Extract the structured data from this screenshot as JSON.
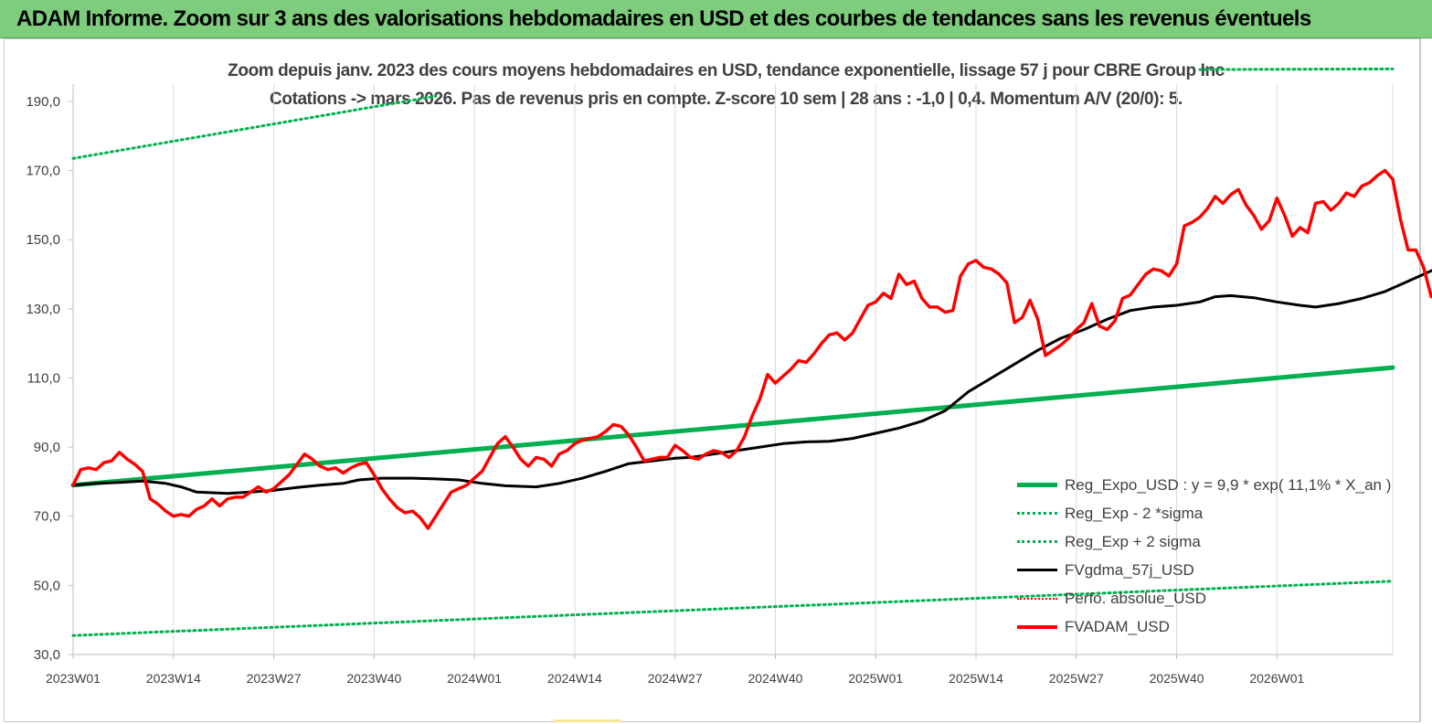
{
  "banner": {
    "title": "ADAM Informe. Zoom sur 3 ans des valorisations hebdomadaires en USD et des courbes de tendances sans les revenus éventuels"
  },
  "chart_data": {
    "type": "line",
    "title_line1": "Zoom depuis janv. 2023 des cours moyens hebdomadaires en USD, tendance exponentielle, lissage 57 j pour CBRE Group Inc",
    "title_line2": "Cotations -> mars 2026. Pas de revenus pris en compte. Z-score 10 sem | 28 ans : -1,0 | 0,4. Momentum A/V (20/0): 5.",
    "x_tick_labels": [
      "2023W01",
      "2023W14",
      "2023W27",
      "2023W40",
      "2024W01",
      "2024W14",
      "2024W27",
      "2024W40",
      "2025W01",
      "2025W14",
      "2025W27",
      "2025W40",
      "2026W01"
    ],
    "x_weeks_total": 171,
    "y_tick_labels": [
      "30,0",
      "50,0",
      "70,0",
      "90,0",
      "110,0",
      "130,0",
      "150,0",
      "170,0",
      "190,0"
    ],
    "ylim": [
      30,
      195
    ],
    "grid": "vertical",
    "legend_position": "bottom-right",
    "series": [
      {
        "name": "Reg_Expo_USD : y = 9,9 * exp( 11,1% *  X_an )",
        "color": "#00b050",
        "style": "solid-thick",
        "points": [
          [
            0,
            79
          ],
          [
            171,
            113
          ]
        ]
      },
      {
        "name": "Reg_Exp - 2 *sigma",
        "color": "#00b050",
        "style": "dotted",
        "points": [
          [
            0,
            35.5
          ],
          [
            171,
            51.2
          ]
        ]
      },
      {
        "name": "Reg_Exp + 2 sigma",
        "color": "#00b050",
        "style": "dotted",
        "points": [
          [
            0,
            173.5
          ],
          [
            47,
            191.5
          ]
        ],
        "points2": [
          [
            146,
            199.2
          ],
          [
            171,
            199.4
          ]
        ]
      },
      {
        "name": "FVgdma_57j_USD",
        "color": "#000000",
        "style": "solid",
        "points": [
          [
            0,
            79
          ],
          [
            3,
            79.5
          ],
          [
            6,
            79.8
          ],
          [
            9,
            80.2
          ],
          [
            12,
            79.5
          ],
          [
            14,
            78.5
          ],
          [
            16,
            77
          ],
          [
            18,
            76.8
          ],
          [
            20,
            76.6
          ],
          [
            23,
            77
          ],
          [
            26,
            77.5
          ],
          [
            29,
            78.3
          ],
          [
            32,
            79
          ],
          [
            35,
            79.5
          ],
          [
            37,
            80.5
          ],
          [
            40,
            81
          ],
          [
            44,
            81
          ],
          [
            47,
            80.8
          ],
          [
            50,
            80.5
          ],
          [
            53,
            79.5
          ],
          [
            56,
            78.8
          ],
          [
            60,
            78.5
          ],
          [
            63,
            79.5
          ],
          [
            66,
            81
          ],
          [
            69,
            83
          ],
          [
            72,
            85.2
          ],
          [
            75,
            86
          ],
          [
            78,
            86.8
          ],
          [
            80,
            87
          ],
          [
            83,
            88
          ],
          [
            86,
            89
          ],
          [
            89,
            90
          ],
          [
            92,
            91
          ],
          [
            95,
            91.5
          ],
          [
            98,
            91.7
          ],
          [
            101,
            92.5
          ],
          [
            104,
            94
          ],
          [
            107,
            95.5
          ],
          [
            110,
            97.5
          ],
          [
            113,
            100.5
          ],
          [
            116,
            106
          ],
          [
            119,
            110
          ],
          [
            122,
            114
          ],
          [
            125,
            118
          ],
          [
            128,
            121.5
          ],
          [
            131,
            124
          ],
          [
            134,
            127
          ],
          [
            137,
            129.5
          ],
          [
            140,
            130.5
          ],
          [
            143,
            131
          ],
          [
            146,
            132
          ],
          [
            148,
            133.5
          ],
          [
            150,
            133.8
          ],
          [
            153,
            133.2
          ],
          [
            156,
            132
          ],
          [
            159,
            131
          ],
          [
            161,
            130.5
          ],
          [
            164,
            131.5
          ],
          [
            167,
            133
          ],
          [
            170,
            135
          ],
          [
            173,
            138
          ],
          [
            176,
            141
          ],
          [
            179,
            143.5
          ],
          [
            182,
            147.5
          ],
          [
            185,
            150.5
          ],
          [
            188,
            153
          ],
          [
            191,
            154
          ],
          [
            194,
            154.5
          ],
          [
            197,
            155
          ],
          [
            200,
            155.5
          ],
          [
            203,
            155.7
          ],
          [
            206,
            155.7
          ],
          [
            209,
            155.6
          ],
          [
            212,
            155
          ],
          [
            215,
            153.5
          ],
          [
            217,
            151
          ],
          [
            219,
            148
          ],
          [
            221,
            145.5
          ],
          [
            223,
            143
          ],
          [
            225,
            142
          ]
        ]
      },
      {
        "name": "Perfo. absolue_USD",
        "color": "#ff0000",
        "style": "dotted",
        "points": []
      },
      {
        "name": "FVADAM_USD",
        "color": "#ff0000",
        "style": "solid-thick",
        "points": [
          [
            0,
            79
          ],
          [
            1,
            83.5
          ],
          [
            2,
            84
          ],
          [
            3,
            83.5
          ],
          [
            4,
            85.5
          ],
          [
            5,
            86
          ],
          [
            6,
            88.5
          ],
          [
            7,
            86.5
          ],
          [
            8,
            85
          ],
          [
            9,
            83
          ],
          [
            10,
            75
          ],
          [
            11,
            73.5
          ],
          [
            12,
            71.5
          ],
          [
            13,
            70
          ],
          [
            14,
            70.5
          ],
          [
            15,
            70
          ],
          [
            16,
            72
          ],
          [
            17,
            73
          ],
          [
            18,
            75
          ],
          [
            19,
            73
          ],
          [
            20,
            75
          ],
          [
            21,
            75.5
          ],
          [
            22,
            75.5
          ],
          [
            23,
            77
          ],
          [
            24,
            78.5
          ],
          [
            25,
            77
          ],
          [
            26,
            78
          ],
          [
            27,
            80
          ],
          [
            28,
            82
          ],
          [
            29,
            85
          ],
          [
            30,
            88
          ],
          [
            31,
            86.5
          ],
          [
            32,
            84.5
          ],
          [
            33,
            83.5
          ],
          [
            34,
            84
          ],
          [
            35,
            82.5
          ],
          [
            36,
            84
          ],
          [
            37,
            85
          ],
          [
            38,
            85.5
          ],
          [
            39,
            82
          ],
          [
            40,
            78
          ],
          [
            41,
            75
          ],
          [
            42,
            72.5
          ],
          [
            43,
            71
          ],
          [
            44,
            71.5
          ],
          [
            45,
            69.5
          ],
          [
            46,
            66.5
          ],
          [
            47,
            70
          ],
          [
            48,
            73.5
          ],
          [
            49,
            77
          ],
          [
            50,
            78
          ],
          [
            51,
            79
          ],
          [
            52,
            81
          ],
          [
            53,
            83
          ],
          [
            54,
            87
          ],
          [
            55,
            91
          ],
          [
            56,
            93
          ],
          [
            57,
            90
          ],
          [
            58,
            86.5
          ],
          [
            59,
            84.5
          ],
          [
            60,
            87
          ],
          [
            61,
            86.5
          ],
          [
            62,
            84.5
          ],
          [
            63,
            88
          ],
          [
            64,
            89
          ],
          [
            65,
            91
          ],
          [
            66,
            92
          ],
          [
            67,
            92.5
          ],
          [
            68,
            93
          ],
          [
            69,
            94.5
          ],
          [
            70,
            96.5
          ],
          [
            71,
            96
          ],
          [
            72,
            93.5
          ],
          [
            73,
            90
          ],
          [
            74,
            86
          ],
          [
            75,
            86.5
          ],
          [
            76,
            87
          ],
          [
            77,
            87
          ],
          [
            78,
            90.5
          ],
          [
            79,
            89
          ],
          [
            80,
            87
          ],
          [
            81,
            86.5
          ],
          [
            82,
            88
          ],
          [
            83,
            89
          ],
          [
            84,
            88.5
          ],
          [
            85,
            87
          ],
          [
            86,
            89
          ],
          [
            87,
            93
          ],
          [
            88,
            99
          ],
          [
            89,
            104
          ],
          [
            90,
            111
          ],
          [
            91,
            108.5
          ],
          [
            92,
            110.5
          ],
          [
            93,
            112.5
          ],
          [
            94,
            115
          ],
          [
            95,
            114.5
          ],
          [
            96,
            117
          ],
          [
            97,
            120
          ],
          [
            98,
            122.5
          ],
          [
            99,
            123
          ],
          [
            100,
            121
          ],
          [
            101,
            123
          ],
          [
            102,
            127
          ],
          [
            103,
            131
          ],
          [
            104,
            132
          ],
          [
            105,
            134.5
          ],
          [
            106,
            133
          ],
          [
            107,
            140
          ],
          [
            108,
            137
          ],
          [
            109,
            138
          ],
          [
            110,
            133
          ],
          [
            111,
            130.5
          ],
          [
            112,
            130.5
          ],
          [
            113,
            129
          ],
          [
            114,
            129.5
          ],
          [
            115,
            139.5
          ],
          [
            116,
            143
          ],
          [
            117,
            144
          ],
          [
            118,
            142
          ],
          [
            119,
            141.5
          ],
          [
            120,
            140
          ],
          [
            121,
            137.5
          ],
          [
            122,
            126
          ],
          [
            123,
            127.5
          ],
          [
            124,
            132.5
          ],
          [
            125,
            127
          ],
          [
            126,
            116.5
          ],
          [
            127,
            118
          ],
          [
            128,
            119.5
          ],
          [
            129,
            121.5
          ],
          [
            130,
            124
          ],
          [
            131,
            126
          ],
          [
            132,
            131.5
          ],
          [
            133,
            125
          ],
          [
            134,
            124
          ],
          [
            135,
            126.5
          ],
          [
            136,
            133
          ],
          [
            137,
            134
          ],
          [
            138,
            137
          ],
          [
            139,
            140
          ],
          [
            140,
            141.5
          ],
          [
            141,
            141
          ],
          [
            142,
            139.5
          ],
          [
            143,
            143
          ],
          [
            144,
            154
          ],
          [
            145,
            155
          ],
          [
            146,
            156.5
          ],
          [
            147,
            159
          ],
          [
            148,
            162.5
          ],
          [
            149,
            160.5
          ],
          [
            150,
            163
          ],
          [
            151,
            164.5
          ],
          [
            152,
            160
          ],
          [
            153,
            157
          ],
          [
            154,
            153
          ],
          [
            155,
            155.5
          ],
          [
            156,
            162
          ],
          [
            157,
            157
          ],
          [
            158,
            151
          ],
          [
            159,
            153.5
          ],
          [
            160,
            152
          ],
          [
            161,
            160.5
          ],
          [
            162,
            161
          ],
          [
            163,
            158.5
          ],
          [
            164,
            160.5
          ],
          [
            165,
            163.5
          ],
          [
            166,
            162.5
          ],
          [
            167,
            165.5
          ],
          [
            168,
            166.5
          ],
          [
            169,
            168.5
          ],
          [
            170,
            170
          ],
          [
            171,
            167.5
          ],
          [
            172,
            156
          ],
          [
            173,
            147
          ],
          [
            174,
            147
          ],
          [
            175,
            142
          ],
          [
            176,
            133.5
          ],
          [
            177,
            134.5
          ],
          [
            178,
            134
          ]
        ]
      }
    ]
  }
}
